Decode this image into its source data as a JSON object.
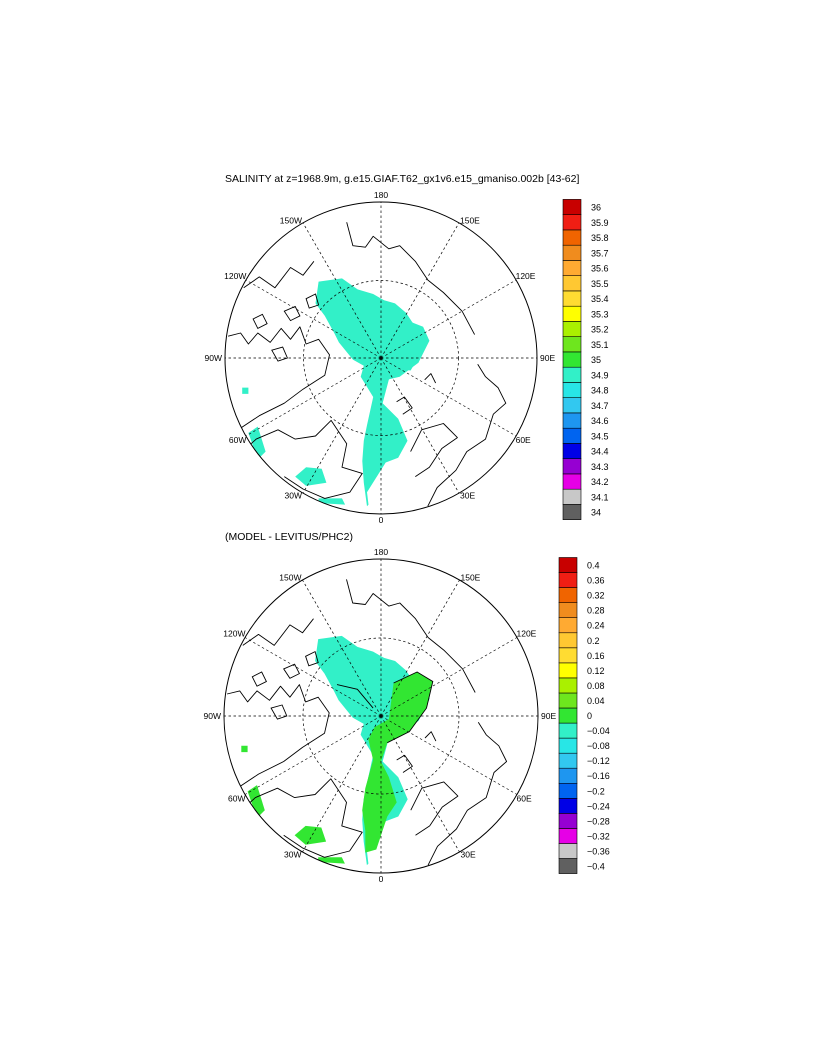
{
  "charts": [
    {
      "title": "SALINITY at z=1968.9m, g.e15.GIAF.T62_gx1v6.e15_gmaniso.002b [43-62]",
      "lon_labels": [
        "180",
        "150E",
        "120E",
        "90E",
        "60E",
        "30E",
        "0",
        "30W",
        "60W",
        "90W",
        "120W",
        "150W"
      ],
      "colorbar": {
        "levels": [
          "34",
          "34.1",
          "34.2",
          "34.3",
          "34.4",
          "34.5",
          "34.6",
          "34.7",
          "34.8",
          "34.9",
          "35",
          "35.1",
          "35.2",
          "35.3",
          "35.4",
          "35.5",
          "35.6",
          "35.7",
          "35.8",
          "35.9",
          "36"
        ],
        "colors": [
          "#606060",
          "#c8c8c8",
          "#e600e6",
          "#9600d2",
          "#0000e6",
          "#0064f0",
          "#1e96f0",
          "#32c8f0",
          "#28e6e6",
          "#32f0c8",
          "#32e632",
          "#6ee61e",
          "#aaf000",
          "#ffff00",
          "#ffdc32",
          "#ffc832",
          "#ffaa32",
          "#f08c1e",
          "#f06400",
          "#f01e14",
          "#c80000"
        ]
      }
    },
    {
      "title": "(MODEL - LEVITUS/PHC2)",
      "lon_labels": [
        "180",
        "150E",
        "120E",
        "90E",
        "60E",
        "30E",
        "0",
        "30W",
        "60W",
        "90W",
        "120W",
        "150W"
      ],
      "colorbar": {
        "levels": [
          "−0.4",
          "−0.36",
          "−0.32",
          "−0.28",
          "−0.24",
          "−0.2",
          "−0.16",
          "−0.12",
          "−0.08",
          "−0.04",
          "0",
          "0.04",
          "0.08",
          "0.12",
          "0.16",
          "0.2",
          "0.24",
          "0.28",
          "0.32",
          "0.36",
          "0.4"
        ],
        "colors": [
          "#606060",
          "#c8c8c8",
          "#e600e6",
          "#9600d2",
          "#0000e6",
          "#0064f0",
          "#1e96f0",
          "#32c8f0",
          "#28e6e6",
          "#32f0c8",
          "#32e632",
          "#6ee61e",
          "#aaf000",
          "#ffff00",
          "#ffdc32",
          "#ffc832",
          "#ffaa32",
          "#f08c1e",
          "#f06400",
          "#f01e14",
          "#c80000"
        ]
      }
    }
  ],
  "chart_data": [
    {
      "type": "heatmap",
      "projection": "north-polar-stereographic",
      "title": "SALINITY at z=1968.9m, g.e15.GIAF.T62_gx1v6.e15_gmaniso.002b [43-62]",
      "center": "north pole, 0 longitude at bottom, 180 at top",
      "graticule": {
        "longitudes": [
          180,
          150,
          120,
          90,
          60,
          30,
          0,
          -30,
          -60,
          -90,
          -120,
          -150
        ],
        "latitude_circle": 80
      },
      "colorbar_levels": [
        34,
        34.1,
        34.2,
        34.3,
        34.4,
        34.5,
        34.6,
        34.7,
        34.8,
        34.9,
        35,
        35.1,
        35.2,
        35.3,
        35.4,
        35.5,
        35.6,
        35.7,
        35.8,
        35.9,
        36
      ],
      "dominant_value_range": [
        34.9,
        35.0
      ],
      "note_regions": "Arctic basin deep water mostly 34.9-35.0 (cyan); small patch 35.0-35.1 near Greenland Sea"
    },
    {
      "type": "heatmap",
      "projection": "north-polar-stereographic",
      "title": "(MODEL - LEVITUS/PHC2)",
      "center": "north pole, 0 longitude at bottom, 180 at top",
      "graticule": {
        "longitudes": [
          180,
          150,
          120,
          90,
          60,
          30,
          0,
          -30,
          -60,
          -90,
          -120,
          -150
        ],
        "latitude_circle": 80
      },
      "colorbar_levels": [
        -0.4,
        -0.36,
        -0.32,
        -0.28,
        -0.24,
        -0.2,
        -0.16,
        -0.12,
        -0.08,
        -0.04,
        0,
        0.04,
        0.08,
        0.12,
        0.16,
        0.2,
        0.24,
        0.28,
        0.32,
        0.36,
        0.4
      ],
      "dominant_value_range": [
        -0.04,
        0.04
      ],
      "note_regions": "Canada basin side -0.04 to 0 (cyan); Eurasian basin and Nordic seas 0 to 0.04 (green)"
    }
  ]
}
